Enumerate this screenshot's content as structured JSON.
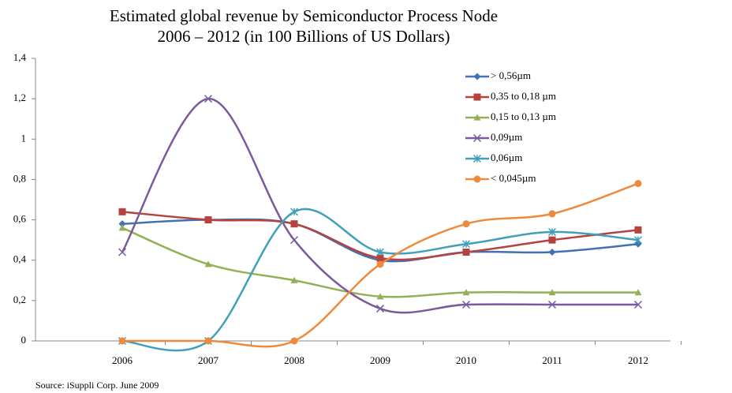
{
  "chart_data": {
    "type": "line",
    "title": "Estimated global revenue by Semiconductor Process Node",
    "subtitle": "2006 – 2012 (in 100 Billions of US Dollars)",
    "source": "Source: iSuppli Corp. June 2009",
    "categories": [
      "2006",
      "2007",
      "2008",
      "2009",
      "2010",
      "2011",
      "2012"
    ],
    "ylim": [
      0,
      1.4
    ],
    "yticks": [
      0,
      {
        "value": 0.2,
        "label": "0,2"
      },
      {
        "value": 0.4,
        "label": "0,4"
      },
      {
        "value": 0.6,
        "label": "0,6"
      },
      {
        "value": 0.8,
        "label": "0,8"
      },
      1,
      {
        "value": 1.2,
        "label": "1,2"
      },
      {
        "value": 1.4,
        "label": "1,4"
      }
    ],
    "smooth": true,
    "legend": "top-right",
    "series": [
      {
        "name": "> 0,56µm",
        "color": "#4170b6",
        "marker": "diamond",
        "values": [
          0.58,
          0.6,
          0.58,
          0.4,
          0.44,
          0.44,
          0.48
        ]
      },
      {
        "name": "0,35 to 0,18 µm",
        "color": "#b4423f",
        "marker": "square",
        "values": [
          0.64,
          0.6,
          0.58,
          0.41,
          0.44,
          0.5,
          0.55
        ]
      },
      {
        "name": "0,15 to 0,13 µm",
        "color": "#93b054",
        "marker": "triangle",
        "values": [
          0.56,
          0.38,
          0.3,
          0.22,
          0.24,
          0.24,
          0.24
        ]
      },
      {
        "name": "0,09µm",
        "color": "#7a5a9c",
        "marker": "x",
        "values": [
          0.44,
          1.2,
          0.5,
          0.16,
          0.18,
          0.18,
          0.18
        ]
      },
      {
        "name": "0,06µm",
        "color": "#41a0b8",
        "marker": "star",
        "values": [
          0,
          0,
          0.64,
          0.44,
          0.48,
          0.54,
          0.5
        ]
      },
      {
        "name": "< 0,045µm",
        "color": "#ee8a3c",
        "marker": "circle",
        "values": [
          0,
          0,
          0,
          0.38,
          0.58,
          0.63,
          0.78
        ]
      }
    ]
  }
}
